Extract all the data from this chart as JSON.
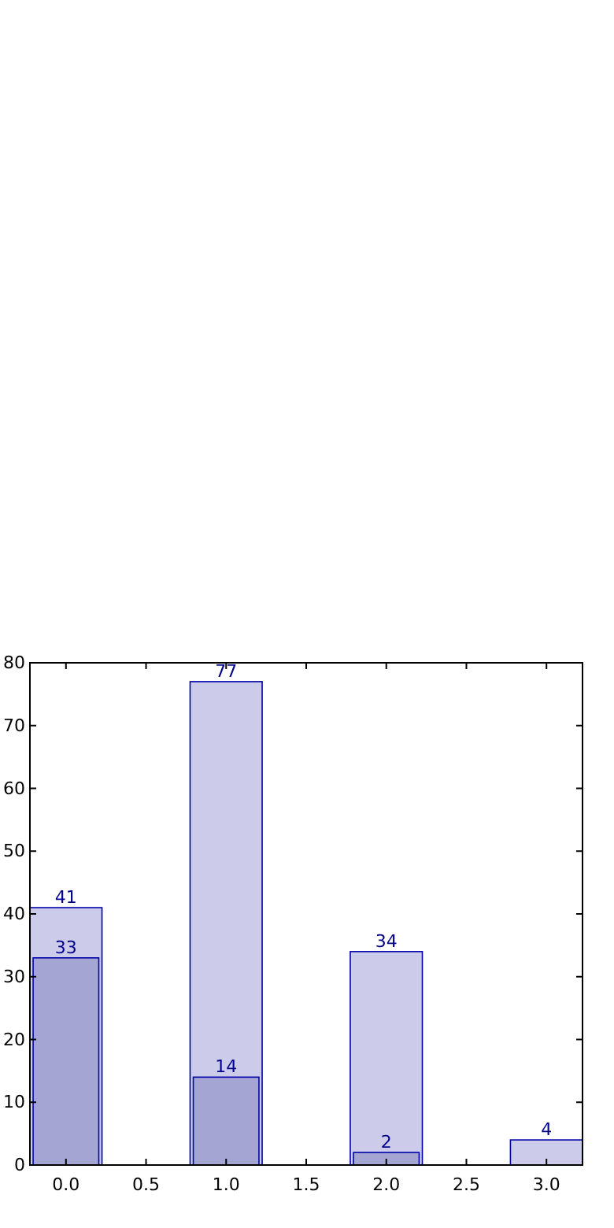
{
  "chart_data": {
    "type": "bar",
    "x": [
      0,
      1,
      2,
      3
    ],
    "data_labels": true,
    "series": [
      {
        "color": "#ccccea",
        "values": [
          41,
          77,
          34,
          4
        ]
      },
      {
        "color": "#a5a5d4",
        "values": [
          33,
          14,
          2,
          null
        ]
      }
    ],
    "xlim": [
      -0.225,
      3.225
    ],
    "xticks": [
      {
        "value": 0,
        "label": "0.0"
      },
      {
        "value": 0.5,
        "label": "0.5"
      },
      {
        "value": 1,
        "label": "1.0"
      },
      {
        "value": 1.5,
        "label": "1.5"
      },
      {
        "value": 2,
        "label": "2.0"
      },
      {
        "value": 2.5,
        "label": "2.5"
      },
      {
        "value": 3,
        "label": "3.0"
      }
    ],
    "ylim": [
      0,
      80
    ],
    "yticks": [
      0,
      10,
      20,
      30,
      40,
      50,
      60,
      70,
      80
    ]
  }
}
